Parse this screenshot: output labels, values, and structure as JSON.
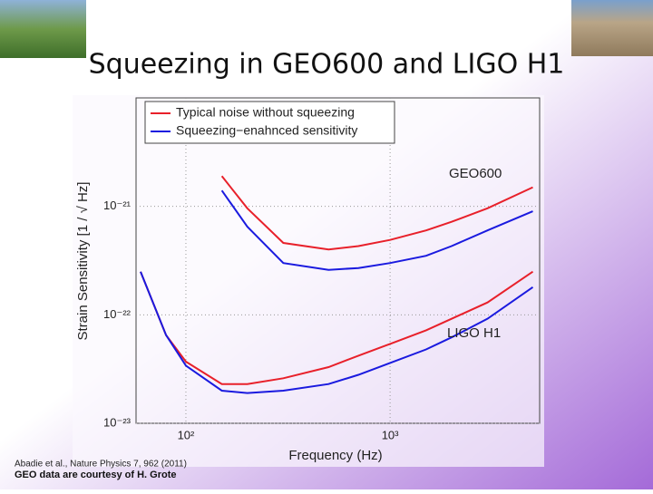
{
  "slide": {
    "title": "Squeezing in GEO600 and LIGO H1",
    "citation": "Abadie et al., Nature Physics 7, 962 (2011)",
    "credit": "GEO data are courtesy of H. Grote"
  },
  "chart_data": {
    "type": "line",
    "x_label": "Frequency (Hz)",
    "y_label": "Strain Sensitivity [1 / √ Hz]",
    "x": [
      150,
      200,
      300,
      500,
      700,
      1000,
      1500,
      2000,
      3000,
      5000,
      null,
      60,
      80,
      100,
      150,
      200,
      300,
      500,
      700,
      1000,
      1500,
      2000,
      3000,
      5000
    ],
    "series": [
      {
        "name": "Typical noise without squeezing",
        "color": "#e8202a",
        "values": [
          1.9e-21,
          9.6e-22,
          4.6e-22,
          4e-22,
          4.3e-22,
          4.9e-22,
          6e-22,
          7.2e-22,
          9.6e-22,
          1.5e-21,
          null,
          2.5e-22,
          6.5e-23,
          3.7e-23,
          2.3e-23,
          2.3e-23,
          2.6e-23,
          3.3e-23,
          4.2e-23,
          5.4e-23,
          7.2e-23,
          9.2e-23,
          1.3e-22,
          2.5e-22
        ]
      },
      {
        "name": "Squeezing−enahnced sensitivity",
        "color": "#1a1adf",
        "values": [
          1.4e-21,
          6.5e-22,
          3e-22,
          2.6e-22,
          2.7e-22,
          3e-22,
          3.5e-22,
          4.3e-22,
          6e-22,
          9e-22,
          null,
          2.5e-22,
          6.5e-23,
          3.4e-23,
          2e-23,
          1.9e-23,
          2e-23,
          2.3e-23,
          2.8e-23,
          3.6e-23,
          4.8e-23,
          6.2e-23,
          9.2e-23,
          1.8e-22
        ]
      }
    ],
    "annotations": [
      "GEO600",
      "LIGO H1"
    ],
    "xscale": "log",
    "yscale": "log",
    "xlim": [
      57,
      5400
    ],
    "ylim": [
      1e-23,
      1e-20
    ],
    "xticks": [
      {
        "value": 100,
        "label": "10²"
      },
      {
        "value": 1000,
        "label": "10³"
      }
    ],
    "yticks": [
      {
        "value": 1e-23,
        "label": "10⁻²³"
      },
      {
        "value": 1e-22,
        "label": "10⁻²²"
      },
      {
        "value": 1e-21,
        "label": "10⁻²¹"
      }
    ],
    "grid": true,
    "legend": "upper left"
  }
}
